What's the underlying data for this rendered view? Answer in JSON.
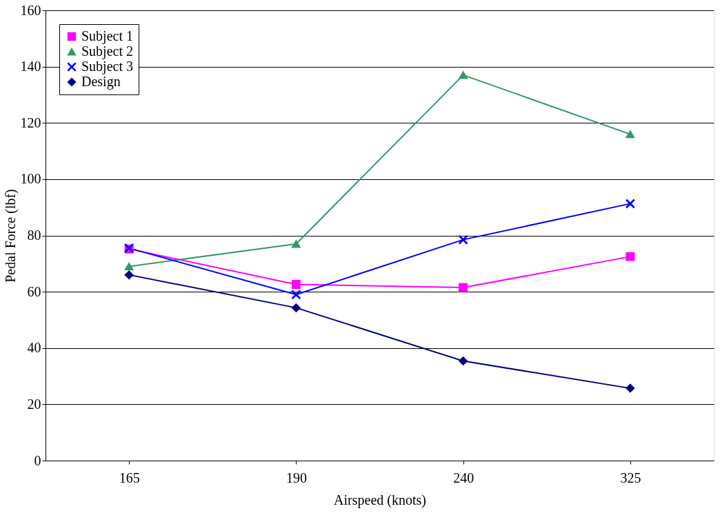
{
  "chart_data": {
    "type": "line",
    "xlabel": "Airspeed (knots)",
    "ylabel": "Pedal Force (lbf)",
    "categories": [
      "165",
      "190",
      "240",
      "325"
    ],
    "series": [
      {
        "name": "Subject 1",
        "color": "#ff00ff",
        "marker": "square",
        "values": [
          75.2,
          62.6,
          61.5,
          72.5
        ]
      },
      {
        "name": "Subject 2",
        "color": "#339966",
        "marker": "triangle",
        "values": [
          69,
          77,
          137,
          116
        ]
      },
      {
        "name": "Subject 3",
        "color": "#0000ff",
        "marker": "cross",
        "values": [
          75.5,
          59,
          78.5,
          91.3
        ]
      },
      {
        "name": "Design",
        "color": "#000080",
        "marker": "diamond",
        "values": [
          66,
          54.3,
          35.4,
          25.7
        ]
      }
    ],
    "ylim": [
      0,
      160
    ],
    "yticks": [
      0,
      20,
      40,
      60,
      80,
      100,
      120,
      140,
      160
    ],
    "grid": "y",
    "legend": "top left"
  }
}
